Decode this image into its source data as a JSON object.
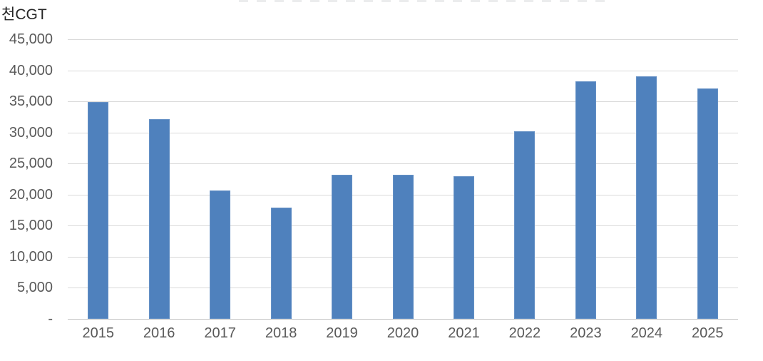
{
  "chart_data": {
    "type": "bar",
    "title": "",
    "unit_label": "천CGT",
    "categories": [
      "2015",
      "2016",
      "2017",
      "2018",
      "2019",
      "2020",
      "2021",
      "2022",
      "2023",
      "2024",
      "2025"
    ],
    "values": [
      34900,
      32100,
      20700,
      17900,
      23200,
      23200,
      23000,
      30200,
      38200,
      39000,
      37100
    ],
    "ylim": [
      0,
      45000
    ],
    "ytick_values": [
      45000,
      40000,
      35000,
      30000,
      25000,
      20000,
      15000,
      10000,
      5000,
      0
    ],
    "ytick_labels": [
      "45,000",
      "40,000",
      "35,000",
      "30,000",
      "25,000",
      "20,000",
      "15,000",
      "10,000",
      "5,000",
      "-"
    ],
    "grid": "horizontal",
    "legend": "none",
    "colors": {
      "bar": "#4f81bd",
      "gridline": "#d9d9d9",
      "axis_line": "#c9c9c9",
      "tick_label": "#595959",
      "unit_label": "#262626",
      "background": "#ffffff"
    }
  }
}
